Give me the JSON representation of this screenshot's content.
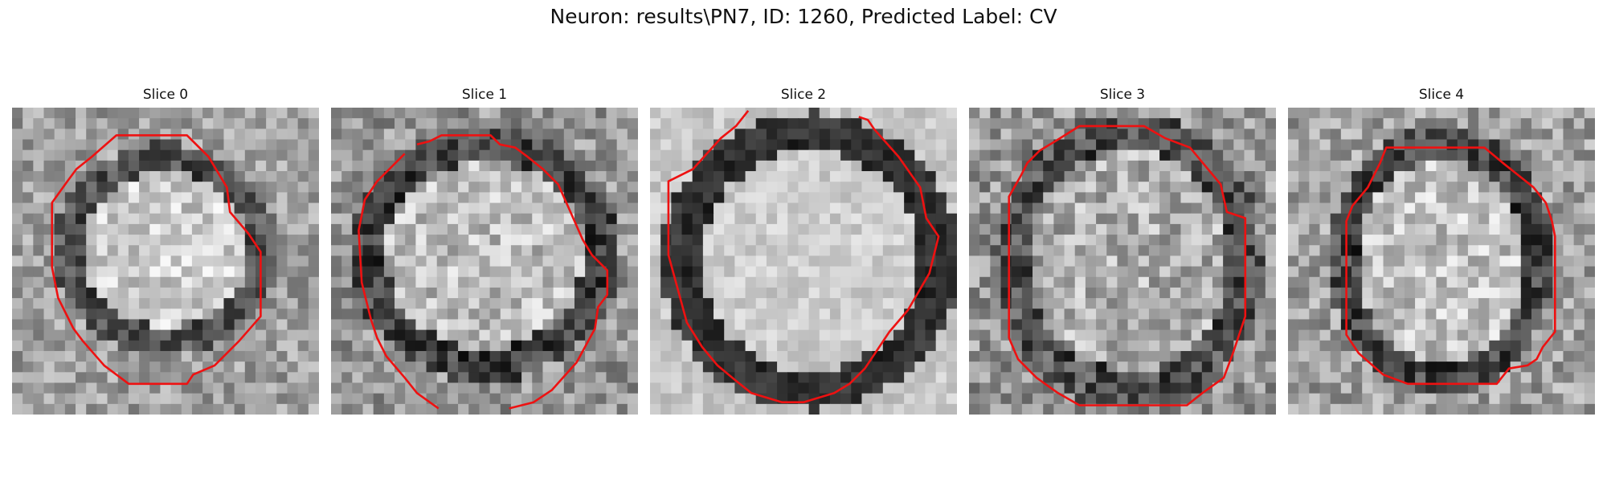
{
  "figure": {
    "title": "Neuron: results\\PN7, ID: 1260, Predicted Label: CV",
    "contour_color": "#ee1111"
  },
  "slices": [
    {
      "title": "Slice 0"
    },
    {
      "title": "Slice 1"
    },
    {
      "title": "Slice 2"
    },
    {
      "title": "Slice 3"
    },
    {
      "title": "Slice 4"
    }
  ]
}
